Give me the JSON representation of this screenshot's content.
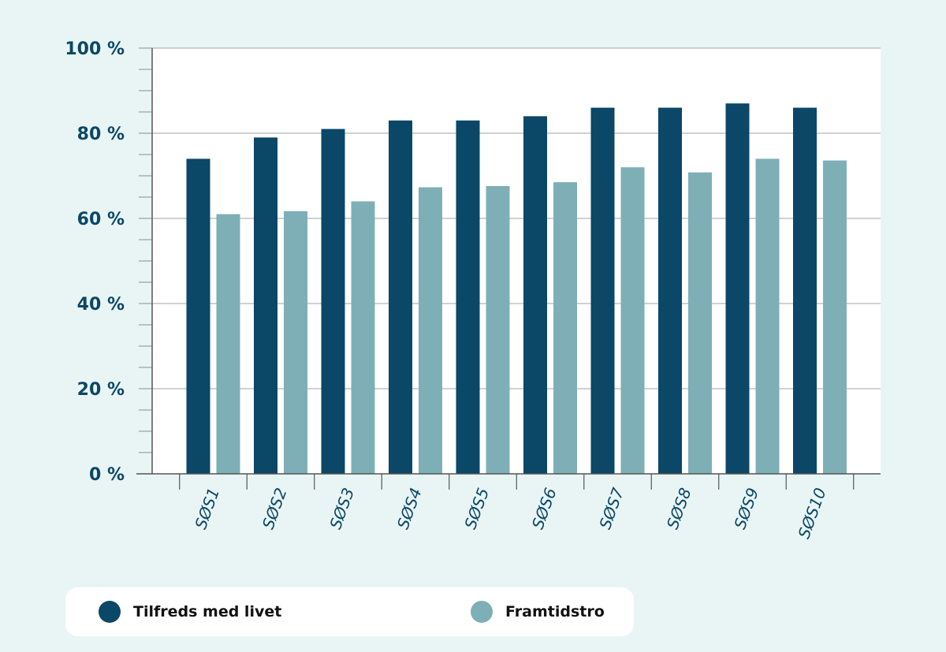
{
  "chart_data": {
    "type": "bar",
    "categories": [
      "SØS1",
      "SØS2",
      "SØS3",
      "SØS4",
      "SØS5",
      "SØS6",
      "SØS7",
      "SØS8",
      "SØS9",
      "SØS10"
    ],
    "series": [
      {
        "name": "Tilfreds med livet",
        "color": "#0b4766",
        "values": [
          74,
          79,
          81,
          83,
          83,
          84,
          86,
          86,
          87,
          86
        ]
      },
      {
        "name": "Framtidstro",
        "color": "#7fafb6",
        "values": [
          61,
          61.7,
          64,
          67.3,
          67.6,
          68.5,
          72,
          70.8,
          74,
          73.6
        ]
      }
    ],
    "yticks": [
      "0 %",
      "20 %",
      "40 %",
      "60 %",
      "80 %",
      "100 %"
    ],
    "ylim": [
      0,
      100
    ],
    "grid": true,
    "legend_position": "bottom"
  },
  "legend": {
    "items": [
      {
        "label": "Tilfreds med livet",
        "color": "#0b4766"
      },
      {
        "label": "Framtidstro",
        "color": "#7fafb6"
      }
    ]
  }
}
